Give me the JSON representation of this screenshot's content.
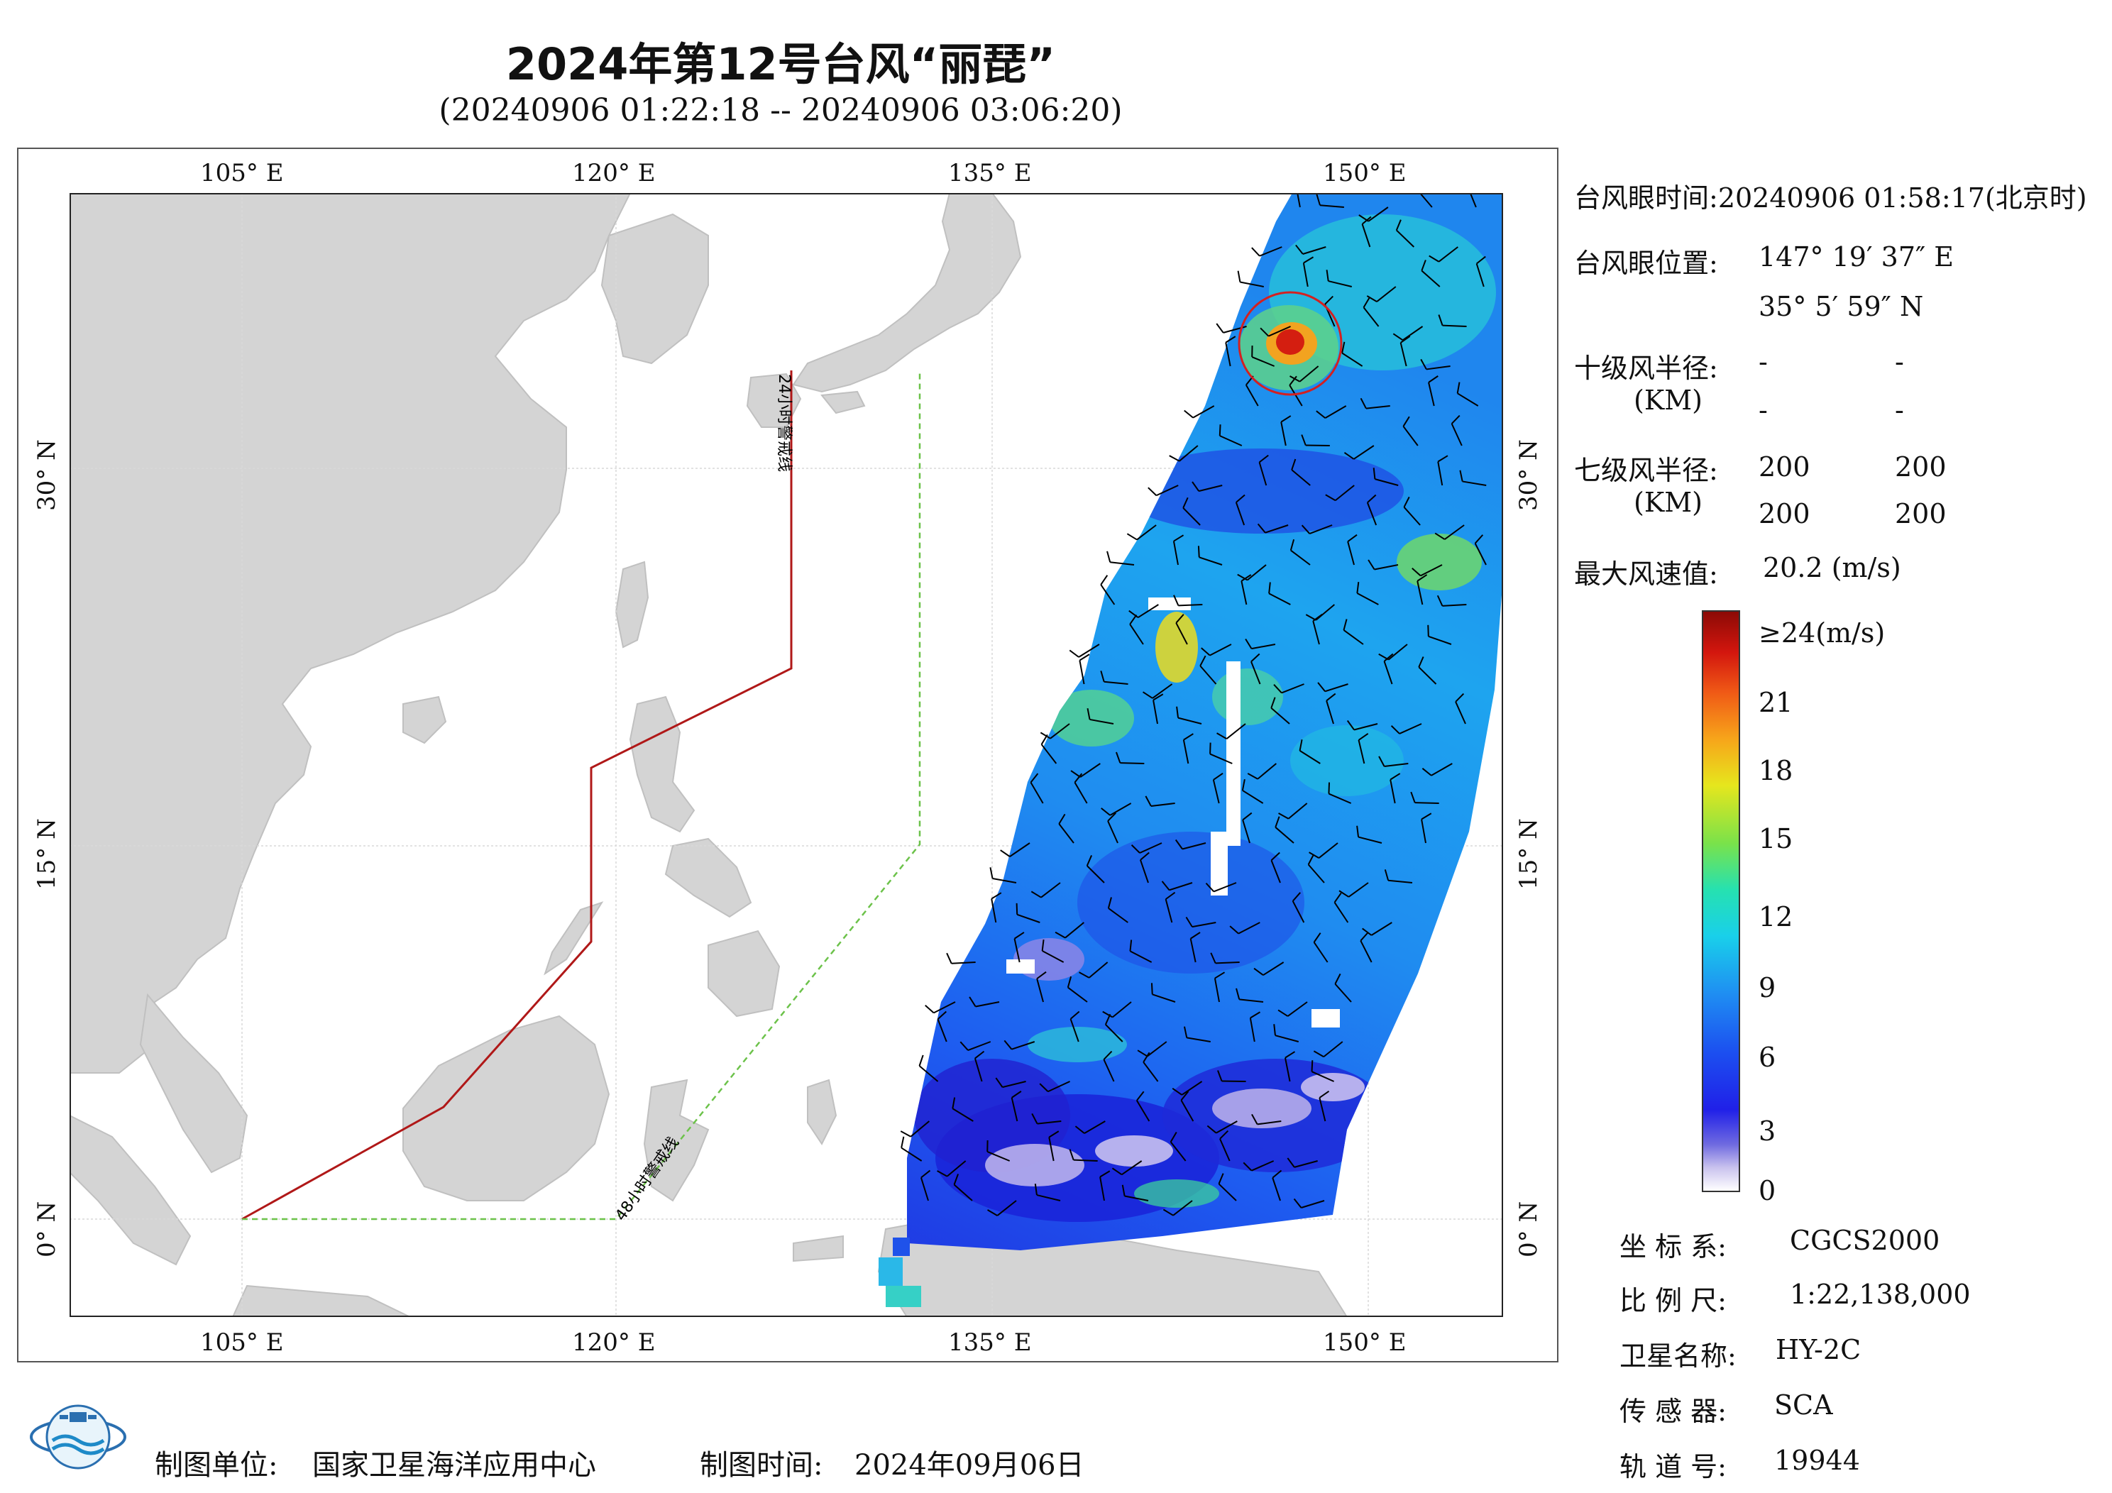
{
  "header": {
    "title": "2024年第12号台风“丽琵”",
    "subtitle": "(20240906 01:22:18 -- 20240906 03:06:20)"
  },
  "map": {
    "lon_labels": [
      "105° E",
      "120° E",
      "135° E",
      "150° E"
    ],
    "lat_labels": [
      "30° N",
      "15° N",
      "0° N"
    ],
    "warning_line_24h": "24小时警戒线",
    "warning_line_48h": "48小时警戒线",
    "colors": {
      "land": "#d4d4d4",
      "sea": "#ffffff",
      "warning_24h": "#b01818",
      "warning_48h": "#6cc24a",
      "typhoon_circle": "#d42020"
    }
  },
  "info_panel": {
    "eye_time_label": "台风眼时间:",
    "eye_time_value": "20240906 01:58:17(北京时)",
    "eye_position_label": "台风眼位置:",
    "eye_lon": "147° 19′ 37″ E",
    "eye_lat": "35° 5′ 59″ N",
    "r10_label": "十级风半径:",
    "r10_unit": "(KM)",
    "r10_values": [
      "-",
      "-",
      "-",
      "-"
    ],
    "r7_label": "七级风半径:",
    "r7_unit": "(KM)",
    "r7_values": [
      "200",
      "200",
      "200",
      "200"
    ],
    "max_wind_label": "最大风速值:",
    "max_wind_value": "20.2  (m/s)"
  },
  "colorbar": {
    "labels": [
      "≥24(m/s)",
      "21",
      "18",
      "15",
      "12",
      "9",
      "6",
      "3",
      "0"
    ]
  },
  "meta_panel": {
    "crs_label": "坐 标 系:",
    "crs_value": "CGCS2000",
    "scale_label": "比 例 尺:",
    "scale_value": "1:22,138,000",
    "satellite_label": "卫星名称:",
    "satellite_value": "HY-2C",
    "sensor_label": "传 感 器:",
    "sensor_value": "SCA",
    "orbit_label": "轨 道 号:",
    "orbit_value": "19944"
  },
  "footer": {
    "producer_label": "制图单位:",
    "producer_value": "国家卫星海洋应用中心",
    "date_label": "制图时间:",
    "date_value": "2024年09月06日"
  }
}
